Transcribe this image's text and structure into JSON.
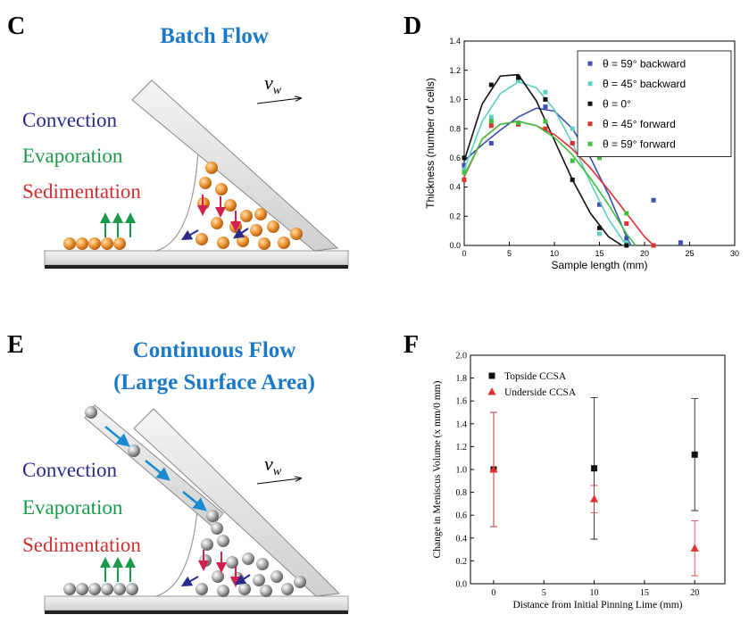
{
  "diagrams": [
    {
      "panel": "C",
      "title": "Batch Flow",
      "labels": [
        "Convection",
        "Evaporation",
        "Sedimentation"
      ],
      "velocity": "v",
      "velocity_subscript": "w"
    },
    {
      "panel": "E",
      "title": "Continuous Flow",
      "subtitle": "(Large Surface Area)",
      "labels": [
        "Convection",
        "Evaporation",
        "Sedimentation"
      ],
      "velocity": "v",
      "velocity_subscript": "w"
    }
  ],
  "chart_data": [
    {
      "type": "scatter",
      "panel": "D",
      "xlabel": "Sample length (mm)",
      "ylabel": "Thickness (number of cells)",
      "xlim": [
        0,
        30
      ],
      "xticks": [
        0,
        5,
        10,
        15,
        20,
        25,
        30
      ],
      "ylim": [
        0,
        1.4
      ],
      "yticks": [
        {
          "value": 0,
          "label": "0.0"
        },
        0.2,
        0.4,
        0.6,
        0.8,
        {
          "value": 1,
          "label": "1.0"
        },
        1.2,
        1.4
      ],
      "legend": "upper right",
      "series": [
        {
          "name": "θ = 59° backward",
          "color": "#3b4fb5",
          "marker": "square",
          "x": [
            0,
            3,
            6,
            9,
            12,
            15,
            18,
            21,
            24
          ],
          "values": [
            0.55,
            0.7,
            0.83,
            0.95,
            0.7,
            0.28,
            0.05,
            0.31,
            0.02
          ],
          "fit": {
            "x": [
              0,
              2,
              4,
              6,
              8,
              10,
              12,
              14,
              16,
              18,
              18.5
            ],
            "values": [
              0.58,
              0.69,
              0.79,
              0.88,
              0.94,
              0.92,
              0.8,
              0.6,
              0.35,
              0.06,
              0
            ]
          }
        },
        {
          "name": "θ = 45° backward",
          "color": "#5fd0c0",
          "marker": "square",
          "x": [
            0,
            3,
            6,
            9,
            12,
            15,
            18
          ],
          "values": [
            0.52,
            0.88,
            1.13,
            1.05,
            0.8,
            0.08,
            0.02
          ],
          "fit": {
            "x": [
              0,
              2,
              4,
              6,
              8,
              10,
              12,
              14,
              16,
              18
            ],
            "values": [
              0.52,
              0.85,
              1.04,
              1.12,
              1.08,
              0.93,
              0.7,
              0.43,
              0.18,
              0
            ]
          }
        },
        {
          "name": "θ = 0°",
          "color": "#111111",
          "marker": "square",
          "x": [
            0,
            3,
            6,
            9,
            12,
            15,
            18
          ],
          "values": [
            0.6,
            1.1,
            1.15,
            1.0,
            0.45,
            0.12,
            0.0
          ],
          "fit": {
            "x": [
              0,
              2,
              4,
              6,
              8,
              10,
              12,
              14,
              16,
              17.5
            ],
            "values": [
              0.58,
              0.97,
              1.16,
              1.17,
              0.99,
              0.72,
              0.45,
              0.22,
              0.06,
              0
            ]
          }
        },
        {
          "name": "θ = 45° forward",
          "color": "#e03030",
          "marker": "square",
          "x": [
            0,
            3,
            6,
            9,
            12,
            15,
            18,
            21
          ],
          "values": [
            0.45,
            0.82,
            0.83,
            0.8,
            0.7,
            0.65,
            0.15,
            0.0
          ],
          "fit": {
            "x": [
              0,
              2,
              4,
              6,
              8,
              10,
              12,
              14,
              16,
              18,
              20,
              21
            ],
            "values": [
              0.47,
              0.73,
              0.83,
              0.85,
              0.82,
              0.76,
              0.66,
              0.53,
              0.38,
              0.22,
              0.06,
              0
            ]
          }
        },
        {
          "name": "θ = 59° forward",
          "color": "#40c040",
          "marker": "square",
          "x": [
            0,
            3,
            6,
            9,
            12,
            15,
            18
          ],
          "values": [
            0.5,
            0.85,
            0.84,
            0.85,
            0.58,
            0.6,
            0.22
          ],
          "fit": {
            "x": [
              0,
              2,
              4,
              6,
              8,
              10,
              12,
              14,
              16,
              18,
              19
            ],
            "values": [
              0.48,
              0.73,
              0.83,
              0.85,
              0.82,
              0.74,
              0.62,
              0.46,
              0.28,
              0.08,
              0
            ]
          }
        }
      ]
    },
    {
      "type": "scatter",
      "panel": "F",
      "xlabel": "Distance from Initial Pinning Lime (mm)",
      "ylabel": "Change in Meniscus Volume (x mm/0 mm)",
      "xlim": [
        -2.3,
        23
      ],
      "xticks": [
        0,
        5,
        10,
        15,
        20
      ],
      "ylim": [
        0,
        2
      ],
      "yticks": [
        {
          "value": 0,
          "label": "0.0"
        },
        0.2,
        0.4,
        0.6,
        0.8,
        {
          "value": 1,
          "label": "1.0"
        },
        1.2,
        1.4,
        1.6,
        1.8,
        {
          "value": 2,
          "label": "2.0"
        }
      ],
      "legend": "upper left",
      "series": [
        {
          "name": "Topside CCSA",
          "color": "#111111",
          "marker": "square",
          "x": [
            0,
            10,
            20
          ],
          "values": [
            1.0,
            1.01,
            1.13
          ],
          "errors": [
            0.5,
            0.62,
            0.49
          ]
        },
        {
          "name": "Underside CCSA",
          "color": "#e03030",
          "marker": "triangle",
          "x": [
            0,
            10,
            20
          ],
          "values": [
            1.0,
            0.74,
            0.31
          ],
          "errors": [
            0.5,
            0.12,
            0.24
          ]
        }
      ]
    }
  ]
}
